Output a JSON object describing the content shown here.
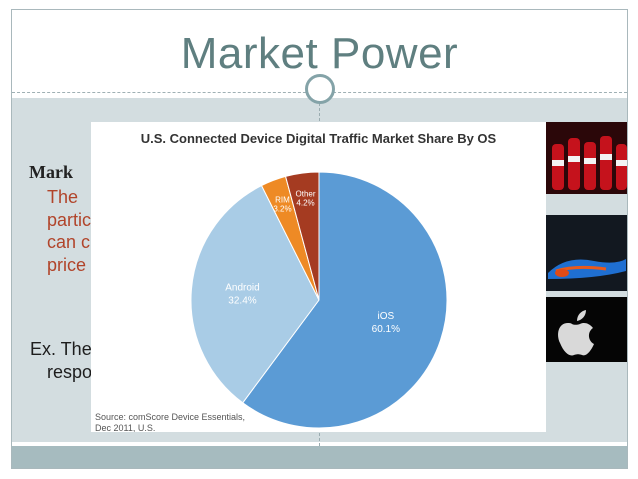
{
  "slide": {
    "title": "Market Power",
    "heading_fragment": "Mark",
    "red_lines": [
      "The",
      "partic",
      "can c",
      "price"
    ],
    "ex_lines": [
      "Ex. The",
      "respo"
    ]
  },
  "chart_data": {
    "type": "pie",
    "title": "U.S. Connected Device Digital Traffic Market Share By OS",
    "categories": [
      "iOS",
      "Android",
      "RIM",
      "Other"
    ],
    "values": [
      60.1,
      32.4,
      3.2,
      4.2
    ],
    "value_labels": [
      "60.1%",
      "32.4%",
      "3.2%",
      "4.2%"
    ],
    "colors": [
      "#5b9bd5",
      "#a9cce6",
      "#ee8a25",
      "#a53b21"
    ],
    "label_colors": [
      "#ffffff",
      "#ffffff",
      "#ffffff",
      "#ffffff"
    ],
    "legend": "none",
    "source_lines": [
      "Source: comScore Device Essentials,",
      "Dec 2011, U.S."
    ]
  },
  "photos": {
    "coke": "coca-cola-bottles",
    "nike": "nike-shoes",
    "apple": "apple-logo"
  },
  "colors": {
    "title": "#5f7f80",
    "band": "#d3dde0",
    "bottom_bar": "#a6bbbf",
    "red_text": "#b1442a"
  }
}
